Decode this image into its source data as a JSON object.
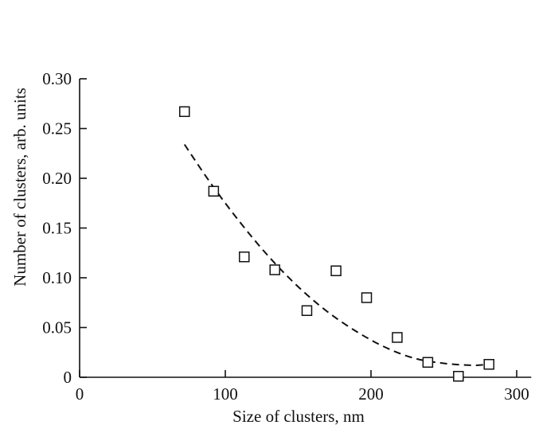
{
  "chart_data": {
    "type": "scatter",
    "xlabel": "Size of clusters, nm",
    "ylabel": "Number of clusters, arb. units",
    "xlim": [
      0,
      310
    ],
    "ylim": [
      0,
      0.3
    ],
    "x_ticks": [
      0,
      100,
      200,
      300
    ],
    "y_ticks": [
      0,
      0.05,
      0.1,
      0.15,
      0.2,
      0.25,
      0.3
    ],
    "x_tick_labels": [
      "0",
      "100",
      "200",
      "300"
    ],
    "y_tick_labels": [
      "0",
      "0.05",
      "0.10",
      "0.15",
      "0.20",
      "0.25",
      "0.30"
    ],
    "grid": false,
    "series": [
      {
        "kind": "scatter",
        "marker": "open-square",
        "x": [
          72,
          92,
          113,
          134,
          156,
          176,
          197,
          218,
          239,
          260,
          281
        ],
        "y": [
          0.267,
          0.187,
          0.121,
          0.108,
          0.067,
          0.107,
          0.08,
          0.04,
          0.015,
          0.001,
          0.013
        ]
      },
      {
        "kind": "fit-curve",
        "style": "dashed",
        "x": [
          72,
          90,
          110,
          130,
          150,
          170,
          190,
          210,
          230,
          250,
          270,
          280
        ],
        "y": [
          0.234,
          0.195,
          0.156,
          0.121,
          0.091,
          0.066,
          0.046,
          0.03,
          0.019,
          0.014,
          0.012,
          0.013
        ]
      }
    ]
  }
}
